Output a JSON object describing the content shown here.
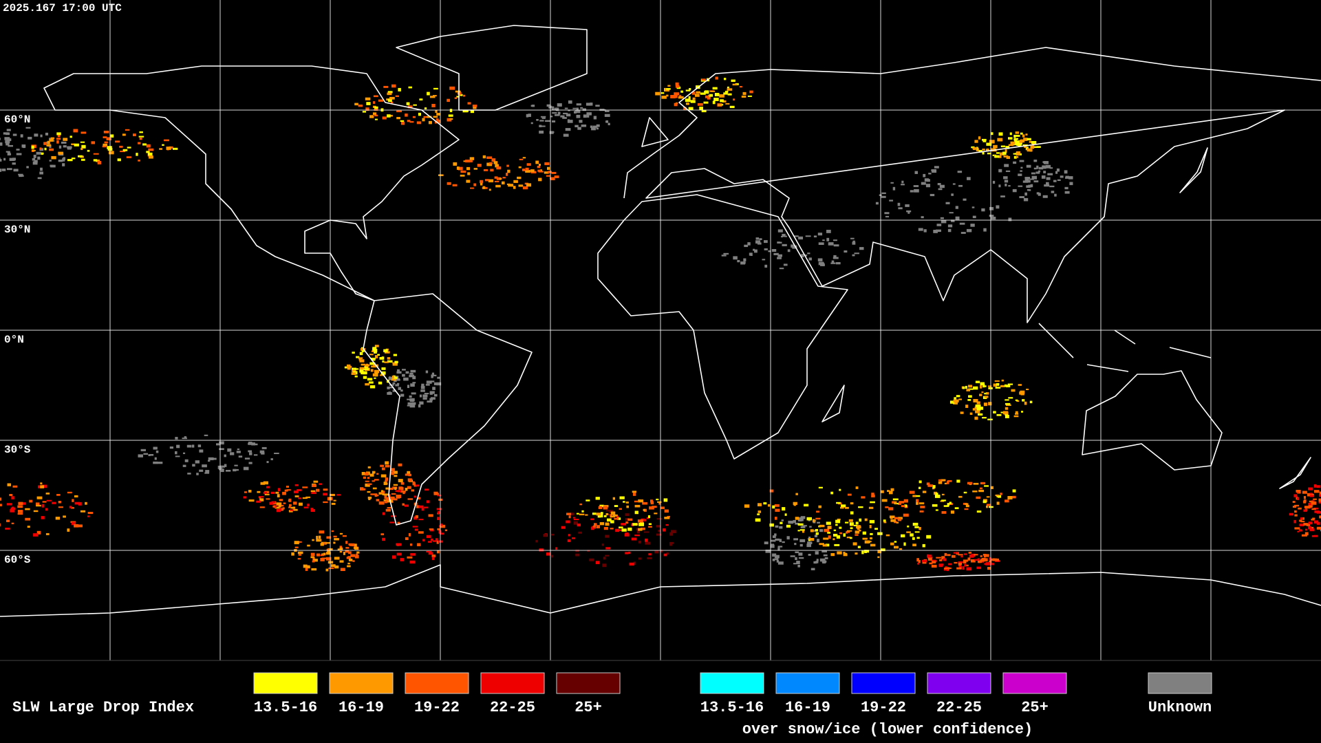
{
  "header": {
    "timestamp": "2025.167 17:00 UTC"
  },
  "map": {
    "latitude_labels": [
      "60°N",
      "30°N",
      "0°N",
      "30°S",
      "60°S"
    ]
  },
  "legend": {
    "title": "SLW Large Drop Index",
    "groups": [
      {
        "items": [
          {
            "label": "13.5-16",
            "color": "#ffff00"
          },
          {
            "label": "16-19",
            "color": "#ff9900"
          },
          {
            "label": "19-22",
            "color": "#ff5500"
          },
          {
            "label": "22-25",
            "color": "#ee0000"
          },
          {
            "label": "25+",
            "color": "#660000"
          }
        ]
      },
      {
        "items": [
          {
            "label": "13.5-16",
            "color": "#00ffff"
          },
          {
            "label": "16-19",
            "color": "#0088ff"
          },
          {
            "label": "19-22",
            "color": "#0000ff"
          },
          {
            "label": "22-25",
            "color": "#7f00ee"
          },
          {
            "label": "25+",
            "color": "#cc00cc"
          }
        ],
        "caption": "over snow/ice (lower confidence)"
      },
      {
        "items": [
          {
            "label": "Unknown",
            "color": "#808080"
          }
        ]
      }
    ]
  }
}
